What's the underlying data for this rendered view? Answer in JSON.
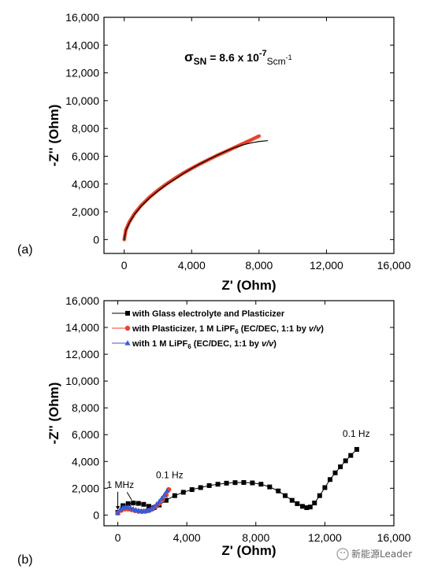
{
  "chart_data": [
    {
      "type": "line",
      "panel_label": "(a)",
      "xlabel": "Z' (Ohm)",
      "ylabel": "-Z'' (Ohm)",
      "xlim": [
        -1200,
        16000
      ],
      "ylim": [
        -1000,
        16000
      ],
      "x_ticks": [
        0,
        4000,
        8000,
        12000,
        16000
      ],
      "x_tick_labels": [
        "0",
        "4,000",
        "8,000",
        "12,000",
        "16,000"
      ],
      "y_ticks": [
        0,
        2000,
        4000,
        6000,
        8000,
        10000,
        12000,
        14000,
        16000
      ],
      "y_tick_labels": [
        "0",
        "2,000",
        "4,000",
        "6,000",
        "8,000",
        "10,000",
        "12,000",
        "14,000",
        "16,000"
      ],
      "annotation": {
        "sigma": "σ",
        "sub": "SN",
        "mid": " = 8.6 x 10",
        "exp": "-7",
        "unit": "Scm",
        "unit_exp": "-1"
      },
      "series": [
        {
          "color": "#e8442a",
          "style": "thick",
          "x": [
            0,
            100,
            300,
            600,
            1000,
            1500,
            2000,
            2500,
            3000,
            3500,
            4000,
            4500,
            5000,
            5500,
            6000,
            6500,
            7000,
            7500,
            8000
          ],
          "y": [
            0,
            700,
            1250,
            1850,
            2450,
            3050,
            3550,
            4000,
            4400,
            4780,
            5120,
            5450,
            5750,
            6050,
            6320,
            6600,
            6880,
            7160,
            7450
          ]
        },
        {
          "color": "#000000",
          "style": "thin",
          "x": [
            0,
            100,
            300,
            600,
            1000,
            1500,
            2000,
            2500,
            3000,
            3500,
            4000,
            4500,
            5000,
            5500,
            6000,
            6500,
            7000,
            7500,
            8000,
            8500
          ],
          "y": [
            0,
            650,
            1200,
            1800,
            2400,
            3000,
            3500,
            3950,
            4350,
            4750,
            5120,
            5450,
            5760,
            6060,
            6340,
            6600,
            6800,
            6950,
            7060,
            7120
          ]
        }
      ]
    },
    {
      "type": "line",
      "panel_label": "(b)",
      "xlabel": "Z' (Ohm)",
      "ylabel": "-Z'' (Ohm)",
      "xlim": [
        -800,
        16000
      ],
      "ylim": [
        -800,
        16000
      ],
      "x_ticks": [
        0,
        4000,
        8000,
        12000,
        16000
      ],
      "x_tick_labels": [
        "0",
        "4,000",
        "8,000",
        "12,000",
        "16,000"
      ],
      "y_ticks": [
        0,
        2000,
        4000,
        6000,
        8000,
        10000,
        12000,
        14000,
        16000
      ],
      "y_tick_labels": [
        "0",
        "2,000",
        "4,000",
        "6,000",
        "8,000",
        "10,000",
        "12,000",
        "14,000",
        "16,000"
      ],
      "legend": [
        {
          "pre": "with Glass electrolyte and Plasticizer",
          "sub": "",
          "post": "",
          "italic": "",
          "tail": ""
        },
        {
          "pre": "with Plasticizer, 1 M LiPF",
          "sub": "6",
          "post": " (EC/DEC, 1:1 by ",
          "italic": "v/v",
          "tail": ")"
        },
        {
          "pre": "with 1 M LiPF",
          "sub": "6",
          "post": " (EC/DEC, 1:1 by ",
          "italic": "v/v",
          "tail": ")"
        }
      ],
      "legend_placement": "top-left",
      "annotations": {
        "high_freq": "1 MHz",
        "low_freq_blue": "0.1 Hz",
        "low_freq_black": "0.1 Hz"
      },
      "series": [
        {
          "color": "#000000",
          "marker": "square",
          "x": [
            0,
            300,
            600,
            900,
            1200,
            1500,
            1800,
            2100,
            2400,
            2800,
            3300,
            3800,
            4300,
            4800,
            5300,
            5800,
            6300,
            6800,
            7300,
            7800,
            8300,
            8800,
            9300,
            9700,
            10100,
            10400,
            10700,
            10950,
            11150,
            11400,
            11700,
            12000,
            12300,
            12600,
            12900,
            13200,
            13500,
            13850
          ],
          "y": [
            200,
            700,
            850,
            900,
            870,
            800,
            650,
            550,
            750,
            1100,
            1450,
            1700,
            1900,
            2050,
            2200,
            2300,
            2380,
            2420,
            2430,
            2400,
            2300,
            2100,
            1800,
            1450,
            1100,
            850,
            650,
            550,
            600,
            900,
            1450,
            2050,
            2650,
            3150,
            3600,
            4050,
            4450,
            4900
          ]
        },
        {
          "color": "#e8442a",
          "marker": "circle",
          "x": [
            0,
            200,
            400,
            600,
            800,
            1000,
            1200,
            1400,
            1600,
            1800,
            2000,
            2200,
            2400,
            2600,
            2800,
            2950
          ],
          "y": [
            150,
            350,
            450,
            450,
            400,
            330,
            280,
            260,
            280,
            340,
            450,
            620,
            850,
            1150,
            1500,
            1900
          ]
        },
        {
          "color": "#3a5ad8",
          "marker": "triangle",
          "x": [
            0,
            150,
            300,
            450,
            600,
            750,
            900,
            1050,
            1200,
            1350,
            1500,
            1650,
            1800,
            1950,
            2100,
            2250,
            2400,
            2550,
            2700,
            2850
          ],
          "y": [
            150,
            400,
            550,
            600,
            580,
            520,
            450,
            380,
            330,
            300,
            290,
            310,
            360,
            460,
            620,
            800,
            1000,
            1250,
            1500,
            1800
          ]
        }
      ]
    }
  ],
  "watermark": "新能源Leader"
}
